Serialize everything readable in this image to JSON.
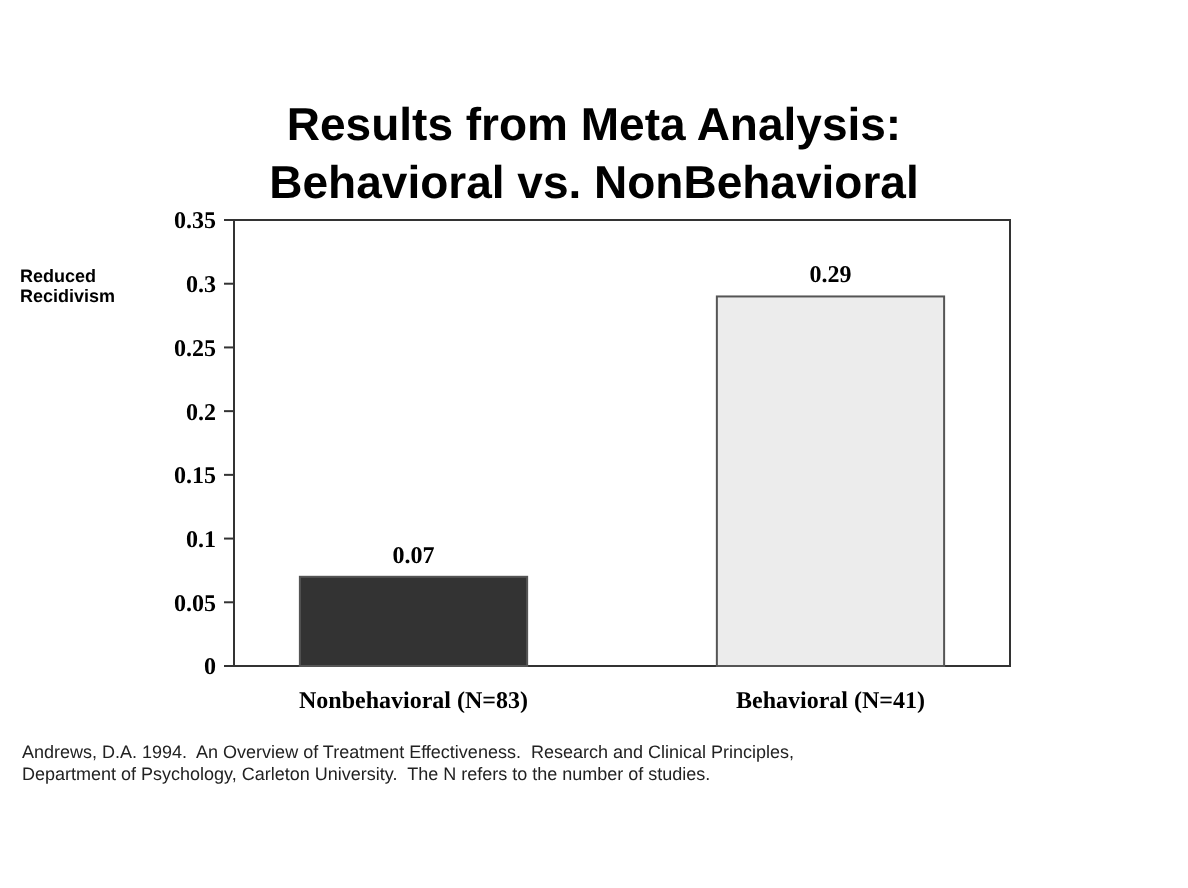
{
  "chart_data": {
    "type": "bar",
    "title": "Results from Meta Analysis:\nBehavioral vs. NonBehavioral",
    "ylabel": "Reduced Recidivism",
    "categories": [
      "Nonbehavioral (N=83)",
      "Behavioral (N=41)"
    ],
    "values": [
      0.07,
      0.29
    ],
    "colors": [
      "#333333",
      "#ececec"
    ],
    "ylim": [
      0,
      0.35
    ],
    "yticks": [
      0,
      0.05,
      0.1,
      0.15,
      0.2,
      0.25,
      0.3,
      0.35
    ],
    "data_labels": true,
    "grid": false,
    "annotations": [
      "Andrews, D.A. 1994.  An Overview of Treatment Effectiveness.  Research and Clinical Principles,\nDepartment of Psychology, Carleton University.  The N refers to the number of studies."
    ]
  }
}
